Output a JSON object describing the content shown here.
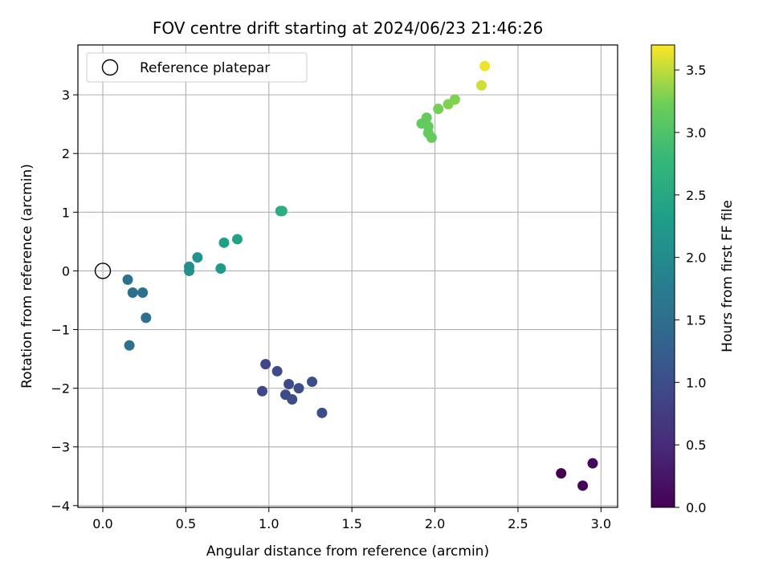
{
  "chart_data": {
    "type": "scatter",
    "title": "FOV centre drift starting at 2024/06/23 21:46:26",
    "xlabel": "Angular distance from reference (arcmin)",
    "ylabel": "Rotation from reference (arcmin)",
    "xlim": [
      -0.15,
      3.1
    ],
    "ylim": [
      -4.03,
      3.85
    ],
    "xticks": [
      0.0,
      0.5,
      1.0,
      1.5,
      2.0,
      2.5,
      3.0
    ],
    "xtick_labels": [
      "0.0",
      "0.5",
      "1.0",
      "1.5",
      "2.0",
      "2.5",
      "3.0"
    ],
    "yticks": [
      -4,
      -3,
      -2,
      -1,
      0,
      1,
      2,
      3
    ],
    "ytick_labels": [
      "−4",
      "−3",
      "−2",
      "−1",
      "0",
      "1",
      "2",
      "3"
    ],
    "grid": true,
    "colormap": "viridis",
    "colorbar": {
      "label": "Hours from first FF file",
      "range": [
        0.0,
        3.7
      ],
      "ticks": [
        0.0,
        0.5,
        1.0,
        1.5,
        2.0,
        2.5,
        3.0,
        3.5
      ],
      "tick_labels": [
        "0.0",
        "0.5",
        "1.0",
        "1.5",
        "2.0",
        "2.5",
        "3.0",
        "3.5"
      ]
    },
    "legend": {
      "placement": "top-left",
      "entries": [
        "Reference platepar"
      ]
    },
    "reference_point": {
      "x": 0.0,
      "y": 0.0
    },
    "points": [
      {
        "x": 2.76,
        "y": -3.45,
        "c": 0.0
      },
      {
        "x": 2.89,
        "y": -3.66,
        "c": 0.05
      },
      {
        "x": 2.95,
        "y": -3.28,
        "c": 0.1
      },
      {
        "x": 0.98,
        "y": -1.59,
        "c": 0.9
      },
      {
        "x": 1.05,
        "y": -1.71,
        "c": 0.95
      },
      {
        "x": 0.96,
        "y": -2.05,
        "c": 0.9
      },
      {
        "x": 1.12,
        "y": -1.93,
        "c": 0.95
      },
      {
        "x": 1.1,
        "y": -2.11,
        "c": 0.95
      },
      {
        "x": 1.18,
        "y": -2.0,
        "c": 1.0
      },
      {
        "x": 1.14,
        "y": -2.19,
        "c": 1.0
      },
      {
        "x": 1.26,
        "y": -1.89,
        "c": 1.0
      },
      {
        "x": 1.32,
        "y": -2.42,
        "c": 1.0
      },
      {
        "x": 0.15,
        "y": -0.15,
        "c": 1.55
      },
      {
        "x": 0.18,
        "y": -0.37,
        "c": 1.55
      },
      {
        "x": 0.24,
        "y": -0.37,
        "c": 1.55
      },
      {
        "x": 0.26,
        "y": -0.8,
        "c": 1.55
      },
      {
        "x": 0.16,
        "y": -1.27,
        "c": 1.55
      },
      {
        "x": 0.52,
        "y": 0.07,
        "c": 2.05
      },
      {
        "x": 0.52,
        "y": 0.0,
        "c": 2.05
      },
      {
        "x": 0.57,
        "y": 0.23,
        "c": 2.15
      },
      {
        "x": 0.71,
        "y": 0.04,
        "c": 2.25
      },
      {
        "x": 0.73,
        "y": 0.48,
        "c": 2.35
      },
      {
        "x": 0.81,
        "y": 0.54,
        "c": 2.4
      },
      {
        "x": 1.07,
        "y": 1.02,
        "c": 2.55
      },
      {
        "x": 1.08,
        "y": 1.02,
        "c": 2.6
      },
      {
        "x": 1.92,
        "y": 2.51,
        "c": 3.15
      },
      {
        "x": 1.95,
        "y": 2.61,
        "c": 3.15
      },
      {
        "x": 1.96,
        "y": 2.46,
        "c": 3.15
      },
      {
        "x": 1.96,
        "y": 2.35,
        "c": 3.15
      },
      {
        "x": 1.98,
        "y": 2.27,
        "c": 3.15
      },
      {
        "x": 2.02,
        "y": 2.76,
        "c": 3.25
      },
      {
        "x": 2.08,
        "y": 2.84,
        "c": 3.3
      },
      {
        "x": 2.12,
        "y": 2.92,
        "c": 3.3
      },
      {
        "x": 2.28,
        "y": 3.16,
        "c": 3.55
      },
      {
        "x": 2.3,
        "y": 3.49,
        "c": 3.65
      }
    ]
  }
}
